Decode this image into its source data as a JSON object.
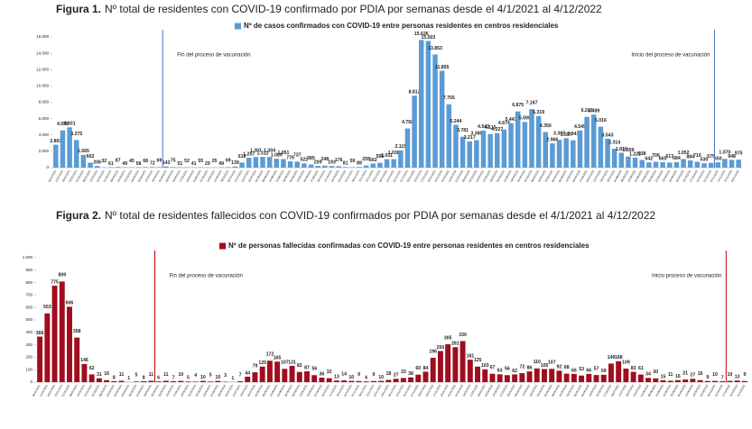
{
  "chart_data": [
    {
      "type": "bar",
      "figure_label": "Figura 1.",
      "title": "Nº total de residentes con COVID-19 confirmado por PDIA por semanas desde el 4/1/2021 al 4/12/2022",
      "series": [
        {
          "name": "Nº de casos confirmados con COVID-19 entre personas residentes en centros residenciales",
          "color": "#5b9bd5",
          "values": [
            2803,
            4555,
            4931,
            3375,
            1565,
            602,
            206,
            32,
            61,
            87,
            49,
            45,
            58,
            68,
            72,
            69,
            143,
            75,
            51,
            52,
            41,
            55,
            29,
            25,
            49,
            69,
            139,
            618,
            1207,
            1301,
            1312,
            1304,
            1089,
            1051,
            776,
            737,
            522,
            385,
            209,
            248,
            193,
            176,
            81,
            59,
            89,
            255,
            502,
            595,
            1031,
            1038,
            2115,
            4792,
            8812,
            15626,
            15503,
            13853,
            11855,
            7755,
            5244,
            3781,
            3217,
            3380,
            4543,
            4115,
            4227,
            4674,
            5443,
            6875,
            5590,
            7167,
            6319,
            4350,
            2966,
            3397,
            3597,
            3341,
            4545,
            6219,
            6489,
            5016,
            3543,
            2314,
            1819,
            1359,
            1222,
            938,
            642,
            706,
            665,
            617,
            684,
            1052,
            884,
            710,
            530,
            575,
            650,
            1070,
            948,
            975
          ],
          "value_labels": [
            "2.803",
            "4.555",
            "4.931",
            "3.375",
            "1.565",
            "602",
            "206",
            "32",
            "61",
            "87",
            "49",
            "45",
            "58",
            "68",
            "72",
            "69",
            "143",
            "75",
            "51",
            "52",
            "41",
            "55",
            "29",
            "25",
            "49",
            "69",
            "139",
            "618",
            "1.207",
            "1.301",
            "1.312",
            "1.304",
            "1.089",
            "1.051",
            "776",
            "737",
            "522",
            "385",
            "209",
            "248",
            "193",
            "176",
            "81",
            "59",
            "89",
            "255",
            "502",
            "595",
            "1.031",
            "1.038",
            "2.115",
            "4.792",
            "8.812",
            "15.626",
            "15.503",
            "13.853",
            "11.855",
            "7.755",
            "5.244",
            "3.781",
            "3.217",
            "3.380",
            "4.543",
            "4.115",
            "4.227",
            "4.674",
            "5.443",
            "6.875",
            "5.590",
            "7.167",
            "6.319",
            "4.350",
            "2.966",
            "3.397",
            "3.597",
            "3.341",
            "4.545",
            "6.219",
            "6.489",
            "5.016",
            "3.543",
            "2.314",
            "1.819",
            "1.359",
            "1.222",
            "938",
            "642",
            "706",
            "665",
            "617",
            "684",
            "1.052",
            "884",
            "710",
            "530",
            "575",
            "650",
            "1.070",
            "948",
            "975"
          ]
        }
      ],
      "categories": [
        "04/01/2021",
        "11/01/2021",
        "18/01/2021",
        "25/01/2021",
        "01/02/2021",
        "08/02/2021",
        "15/02/2021",
        "22/02/2021",
        "01/03/2021",
        "08/03/2021",
        "15/03/2021",
        "22/03/2021",
        "29/03/2021",
        "05/04/2021",
        "12/04/2021",
        "19/04/2021",
        "26/04/2021",
        "03/05/2021",
        "10/05/2021",
        "17/05/2021",
        "24/05/2021",
        "31/05/2021",
        "07/06/2021",
        "14/06/2021",
        "21/06/2021",
        "28/06/2021",
        "05/07/2021",
        "12/07/2021",
        "19/07/2021",
        "26/07/2021",
        "02/08/2021",
        "09/08/2021",
        "16/08/2021",
        "23/08/2021",
        "30/08/2021",
        "06/09/2021",
        "13/09/2021",
        "20/09/2021",
        "27/09/2021",
        "04/10/2021",
        "11/10/2021",
        "18/10/2021",
        "25/10/2021",
        "01/11/2021",
        "08/11/2021",
        "15/11/2021",
        "22/11/2021",
        "29/11/2021",
        "06/12/2021",
        "13/12/2021",
        "20/12/2021",
        "27/12/2021",
        "03/01/2022",
        "10/01/2022",
        "17/01/2022",
        "24/01/2022",
        "31/01/2022",
        "07/02/2022",
        "14/02/2022",
        "21/02/2022",
        "28/02/2022",
        "07/03/2022",
        "14/03/2022",
        "21/03/2022",
        "28/03/2022",
        "04/04/2022",
        "11/04/2022",
        "18/04/2022",
        "25/04/2022",
        "02/05/2022",
        "09/05/2022",
        "16/05/2022",
        "23/05/2022",
        "30/05/2022",
        "06/06/2022",
        "13/06/2022",
        "20/06/2022",
        "27/06/2022",
        "04/07/2022",
        "11/07/2022",
        "18/07/2022",
        "25/07/2022",
        "01/08/2022",
        "08/08/2022",
        "15/08/2022",
        "22/08/2022",
        "29/08/2022",
        "05/09/2022",
        "12/09/2022",
        "19/09/2022",
        "26/09/2022",
        "03/10/2022",
        "10/10/2022",
        "17/10/2022",
        "24/10/2022",
        "31/10/2022",
        "07/11/2022",
        "14/11/2022",
        "21/11/2022",
        "28/11/2022"
      ],
      "ylim": [
        0,
        16000
      ],
      "yticks": [
        0,
        {
          "value": 2000,
          "label": "2.000"
        },
        {
          "value": 4000,
          "label": "4.000"
        },
        {
          "value": 6000,
          "label": "6.000"
        },
        {
          "value": 8000,
          "label": "8.000"
        },
        {
          "value": 10000,
          "label": "10.000"
        },
        {
          "value": 12000,
          "label": "12.000"
        },
        {
          "value": 14000,
          "label": "14.000"
        },
        {
          "value": 16000,
          "label": "16.000"
        }
      ],
      "annotations": [
        {
          "text": "Fin del proceso de vacunación",
          "at": "26/04/2021",
          "color": "#4472c4",
          "side": "right"
        },
        {
          "text": "Inicio del proceso de vacunación",
          "at": "07/11/2022",
          "color": "#4472c4",
          "side": "left"
        }
      ]
    },
    {
      "type": "bar",
      "figure_label": "Figura 2.",
      "title": "Nº total de residentes fallecidos con COVID-19 confirmados por PDIA por semanas desde el 4/1/2021 al 4/12/2022",
      "series": [
        {
          "name": "Nº de personas fallecidas confirmadas con COVID-19 entre personas residentes en centros residenciales",
          "color": "#a00d1e",
          "values": [
            366,
            553,
            775,
            809,
            606,
            358,
            146,
            62,
            31,
            16,
            8,
            11,
            1,
            5,
            8,
            11,
            6,
            11,
            7,
            10,
            5,
            4,
            10,
            5,
            10,
            3,
            1,
            7,
            44,
            79,
            125,
            172,
            165,
            107,
            131,
            82,
            87,
            56,
            36,
            32,
            13,
            14,
            10,
            9,
            6,
            9,
            10,
            18,
            27,
            33,
            38,
            60,
            84,
            196,
            250,
            305,
            281,
            330,
            181,
            125,
            103,
            67,
            63,
            56,
            62,
            72,
            86,
            110,
            105,
            107,
            92,
            68,
            66,
            53,
            66,
            57,
            59,
            149,
            168,
            109,
            83,
            61,
            34,
            30,
            15,
            11,
            16,
            21,
            27,
            16,
            9,
            10,
            7,
            10,
            13,
            9
          ]
        }
      ],
      "categories": [
        "04/01/2021",
        "11/01/2021",
        "18/01/2021",
        "25/01/2021",
        "01/02/2021",
        "08/02/2021",
        "15/02/2021",
        "22/02/2021",
        "01/03/2021",
        "08/03/2021",
        "15/03/2021",
        "22/03/2021",
        "29/03/2021",
        "05/04/2021",
        "12/04/2021",
        "19/04/2021",
        "26/04/2021",
        "03/05/2021",
        "10/05/2021",
        "17/05/2021",
        "24/05/2021",
        "31/05/2021",
        "07/06/2021",
        "14/06/2021",
        "21/06/2021",
        "28/06/2021",
        "05/07/2021",
        "12/07/2021",
        "19/07/2021",
        "26/07/2021",
        "02/08/2021",
        "09/08/2021",
        "16/08/2021",
        "23/08/2021",
        "30/08/2021",
        "06/09/2021",
        "13/09/2021",
        "20/09/2021",
        "27/09/2021",
        "04/10/2021",
        "11/10/2021",
        "18/10/2021",
        "25/10/2021",
        "01/11/2021",
        "08/11/2021",
        "15/11/2021",
        "22/11/2021",
        "29/11/2021",
        "06/12/2021",
        "13/12/2021",
        "20/12/2021",
        "27/12/2021",
        "03/01/2022",
        "10/01/2022",
        "17/01/2022",
        "24/01/2022",
        "31/01/2022",
        "07/02/2022",
        "14/02/2022",
        "21/02/2022",
        "28/02/2022",
        "07/03/2022",
        "14/03/2022",
        "21/03/2022",
        "28/03/2022",
        "04/04/2022",
        "11/04/2022",
        "18/04/2022",
        "25/04/2022",
        "02/05/2022",
        "09/05/2022",
        "16/05/2022",
        "23/05/2022",
        "30/05/2022",
        "06/06/2022",
        "13/06/2022",
        "20/06/2022",
        "27/06/2022",
        "04/07/2022",
        "11/07/2022",
        "18/07/2022",
        "25/07/2022",
        "01/08/2022",
        "08/08/2022",
        "15/08/2022",
        "22/08/2022",
        "29/08/2022",
        "05/09/2022",
        "12/09/2022",
        "19/09/2022",
        "26/09/2022",
        "03/10/2022",
        "10/10/2022",
        "17/10/2022",
        "24/10/2022",
        "31/10/2022"
      ],
      "ylim": [
        0,
        1000
      ],
      "yticks": [
        0,
        100,
        200,
        300,
        400,
        500,
        600,
        700,
        800,
        900,
        {
          "value": 1000,
          "label": "1.000"
        }
      ],
      "annotations": [
        {
          "text": "Fin del proceso de vacunación",
          "at": "26/04/2021",
          "color": "#c00000",
          "side": "right"
        },
        {
          "text": "Inicio proceso de vacunación",
          "at": "17/10/2022",
          "color": "#c00000",
          "side": "left"
        }
      ]
    }
  ]
}
